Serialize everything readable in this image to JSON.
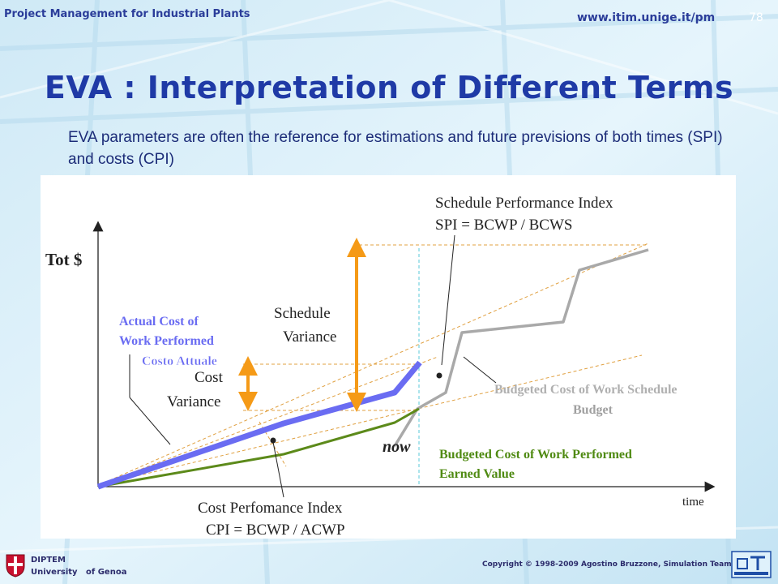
{
  "header": {
    "course": "Project Management for Industrial Plants",
    "url": "www.itim.unige.it/pm",
    "page_number": "78"
  },
  "title": "EVA : Interpretation of Different Terms",
  "intro": "EVA parameters are often the reference for estimations and future previsions of both times (SPI) and costs (CPI)",
  "diagram": {
    "y_axis_label": "Tot $",
    "x_axis_label": "time",
    "now_label": "now",
    "spi_line1": "Schedule Performance Index",
    "spi_line2": "SPI = BCWP / BCWS",
    "cpi_line1": "Cost Perfomance Index",
    "cpi_line2": "CPI = BCWP / ACWP",
    "schedule_variance_line1": "Schedule",
    "schedule_variance_line2": "Variance",
    "cost_variance_line1": "Cost",
    "cost_variance_line2": "Variance",
    "acwp_line1": "Actual Cost of",
    "acwp_line2": "Work Performed",
    "acwp_line3": "Costo Attuale",
    "bcws_line1": "Budgeted Cost of Work Schedule",
    "bcws_line2": "Budget",
    "bcwp_line1": "Budgeted Cost of Work Performed",
    "bcwp_line2": "Earned Value",
    "colors": {
      "acwp": "#6a6cf2",
      "bcws": "#a9a9a9",
      "bcwp": "#5c8a1a",
      "variance_arrow": "#f59a17",
      "guide": "#e0a040",
      "now_line": "#58c8d8"
    }
  },
  "footer": {
    "dept": "DIPTEM",
    "university": "University   of Genoa",
    "copyright": "Copyright © 1998-2009 Agostino Bruzzone, Simulation Team"
  }
}
